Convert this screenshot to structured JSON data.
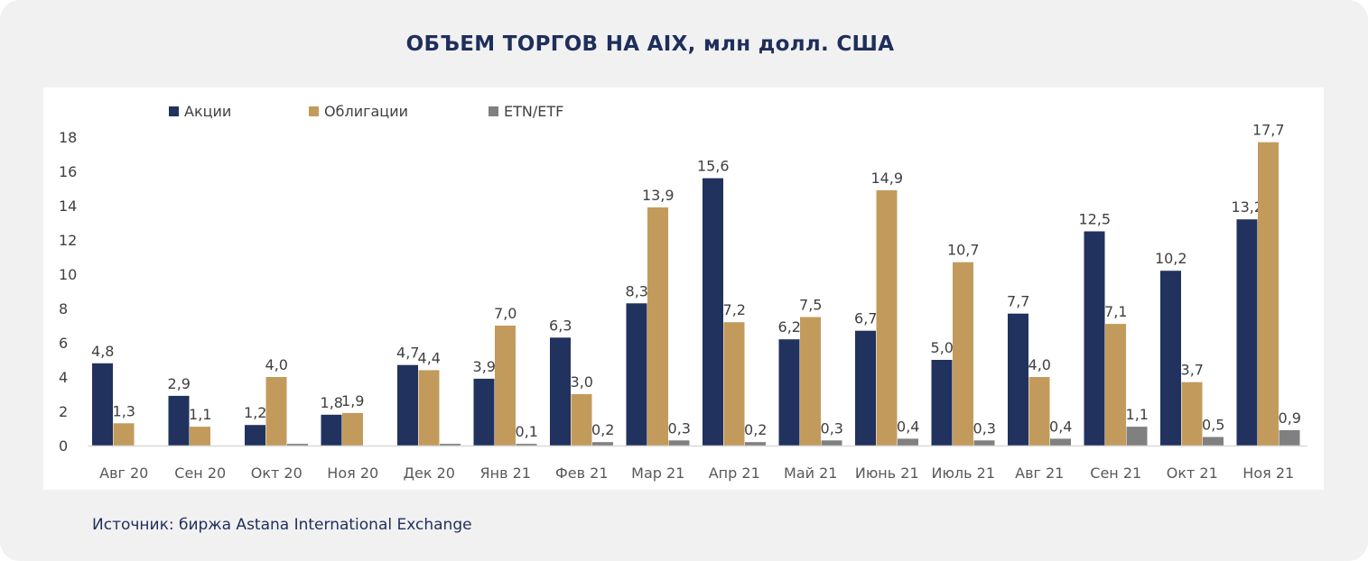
{
  "chart_data": {
    "type": "bar",
    "title": "ОБЪЕМ ТОРГОВ НА AIX,  млн долл. США",
    "categories": [
      "Авг 20",
      "Сен 20",
      "Окт 20",
      "Ноя 20",
      "Дек 20",
      "Янв 21",
      "Фев 21",
      "Мар 21",
      "Апр 21",
      "Май 21",
      "Июнь 21",
      "Июль 21",
      "Авг 21",
      "Сен 21",
      "Окт 21",
      "Ноя 21"
    ],
    "series": [
      {
        "name": "Акции",
        "color": "#22325f",
        "values": [
          4.8,
          2.9,
          1.2,
          1.8,
          4.7,
          3.9,
          6.3,
          8.3,
          15.6,
          6.2,
          6.7,
          5.0,
          7.7,
          12.5,
          10.2,
          13.2
        ],
        "labels": [
          "4,8",
          "2,9",
          "1,2",
          "1,8",
          "4,7",
          "3,9",
          "6,3",
          "8,3",
          "15,6",
          "6,2",
          "6,7",
          "5,0",
          "7,7",
          "12,5",
          "10,2",
          "13,2"
        ]
      },
      {
        "name": "Облигации",
        "color": "#c29b5c",
        "values": [
          1.3,
          1.1,
          4.0,
          1.9,
          4.4,
          7.0,
          3.0,
          13.9,
          7.2,
          7.5,
          14.9,
          10.7,
          4.0,
          7.1,
          3.7,
          17.7
        ],
        "labels": [
          "1,3",
          "1,1",
          "4,0",
          "1,9",
          "4,4",
          "7,0",
          "3,0",
          "13,9",
          "7,2",
          "7,5",
          "14,9",
          "10,7",
          "4,0",
          "7,1",
          "3,7",
          "17,7"
        ]
      },
      {
        "name": "ETN/ETF",
        "color": "#808080",
        "values": [
          0,
          0,
          0.1,
          0,
          0.1,
          0.1,
          0.2,
          0.3,
          0.2,
          0.3,
          0.4,
          0.3,
          0.4,
          1.1,
          0.5,
          0.9
        ],
        "labels": [
          "",
          "",
          "",
          "",
          "",
          "0,1",
          "0,2",
          "0,3",
          "0,2",
          "0,3",
          "0,4",
          "0,3",
          "0,4",
          "1,1",
          "0,5",
          "0,9"
        ]
      }
    ],
    "xlabel": "",
    "ylabel": "",
    "ylim": [
      0,
      18
    ],
    "yticks": [
      "0",
      "2",
      "4",
      "6",
      "8",
      "10",
      "12",
      "14",
      "16",
      "18"
    ],
    "grid": false,
    "legend": "top-left"
  },
  "source": "Источник: биржа Astana International Exchange"
}
